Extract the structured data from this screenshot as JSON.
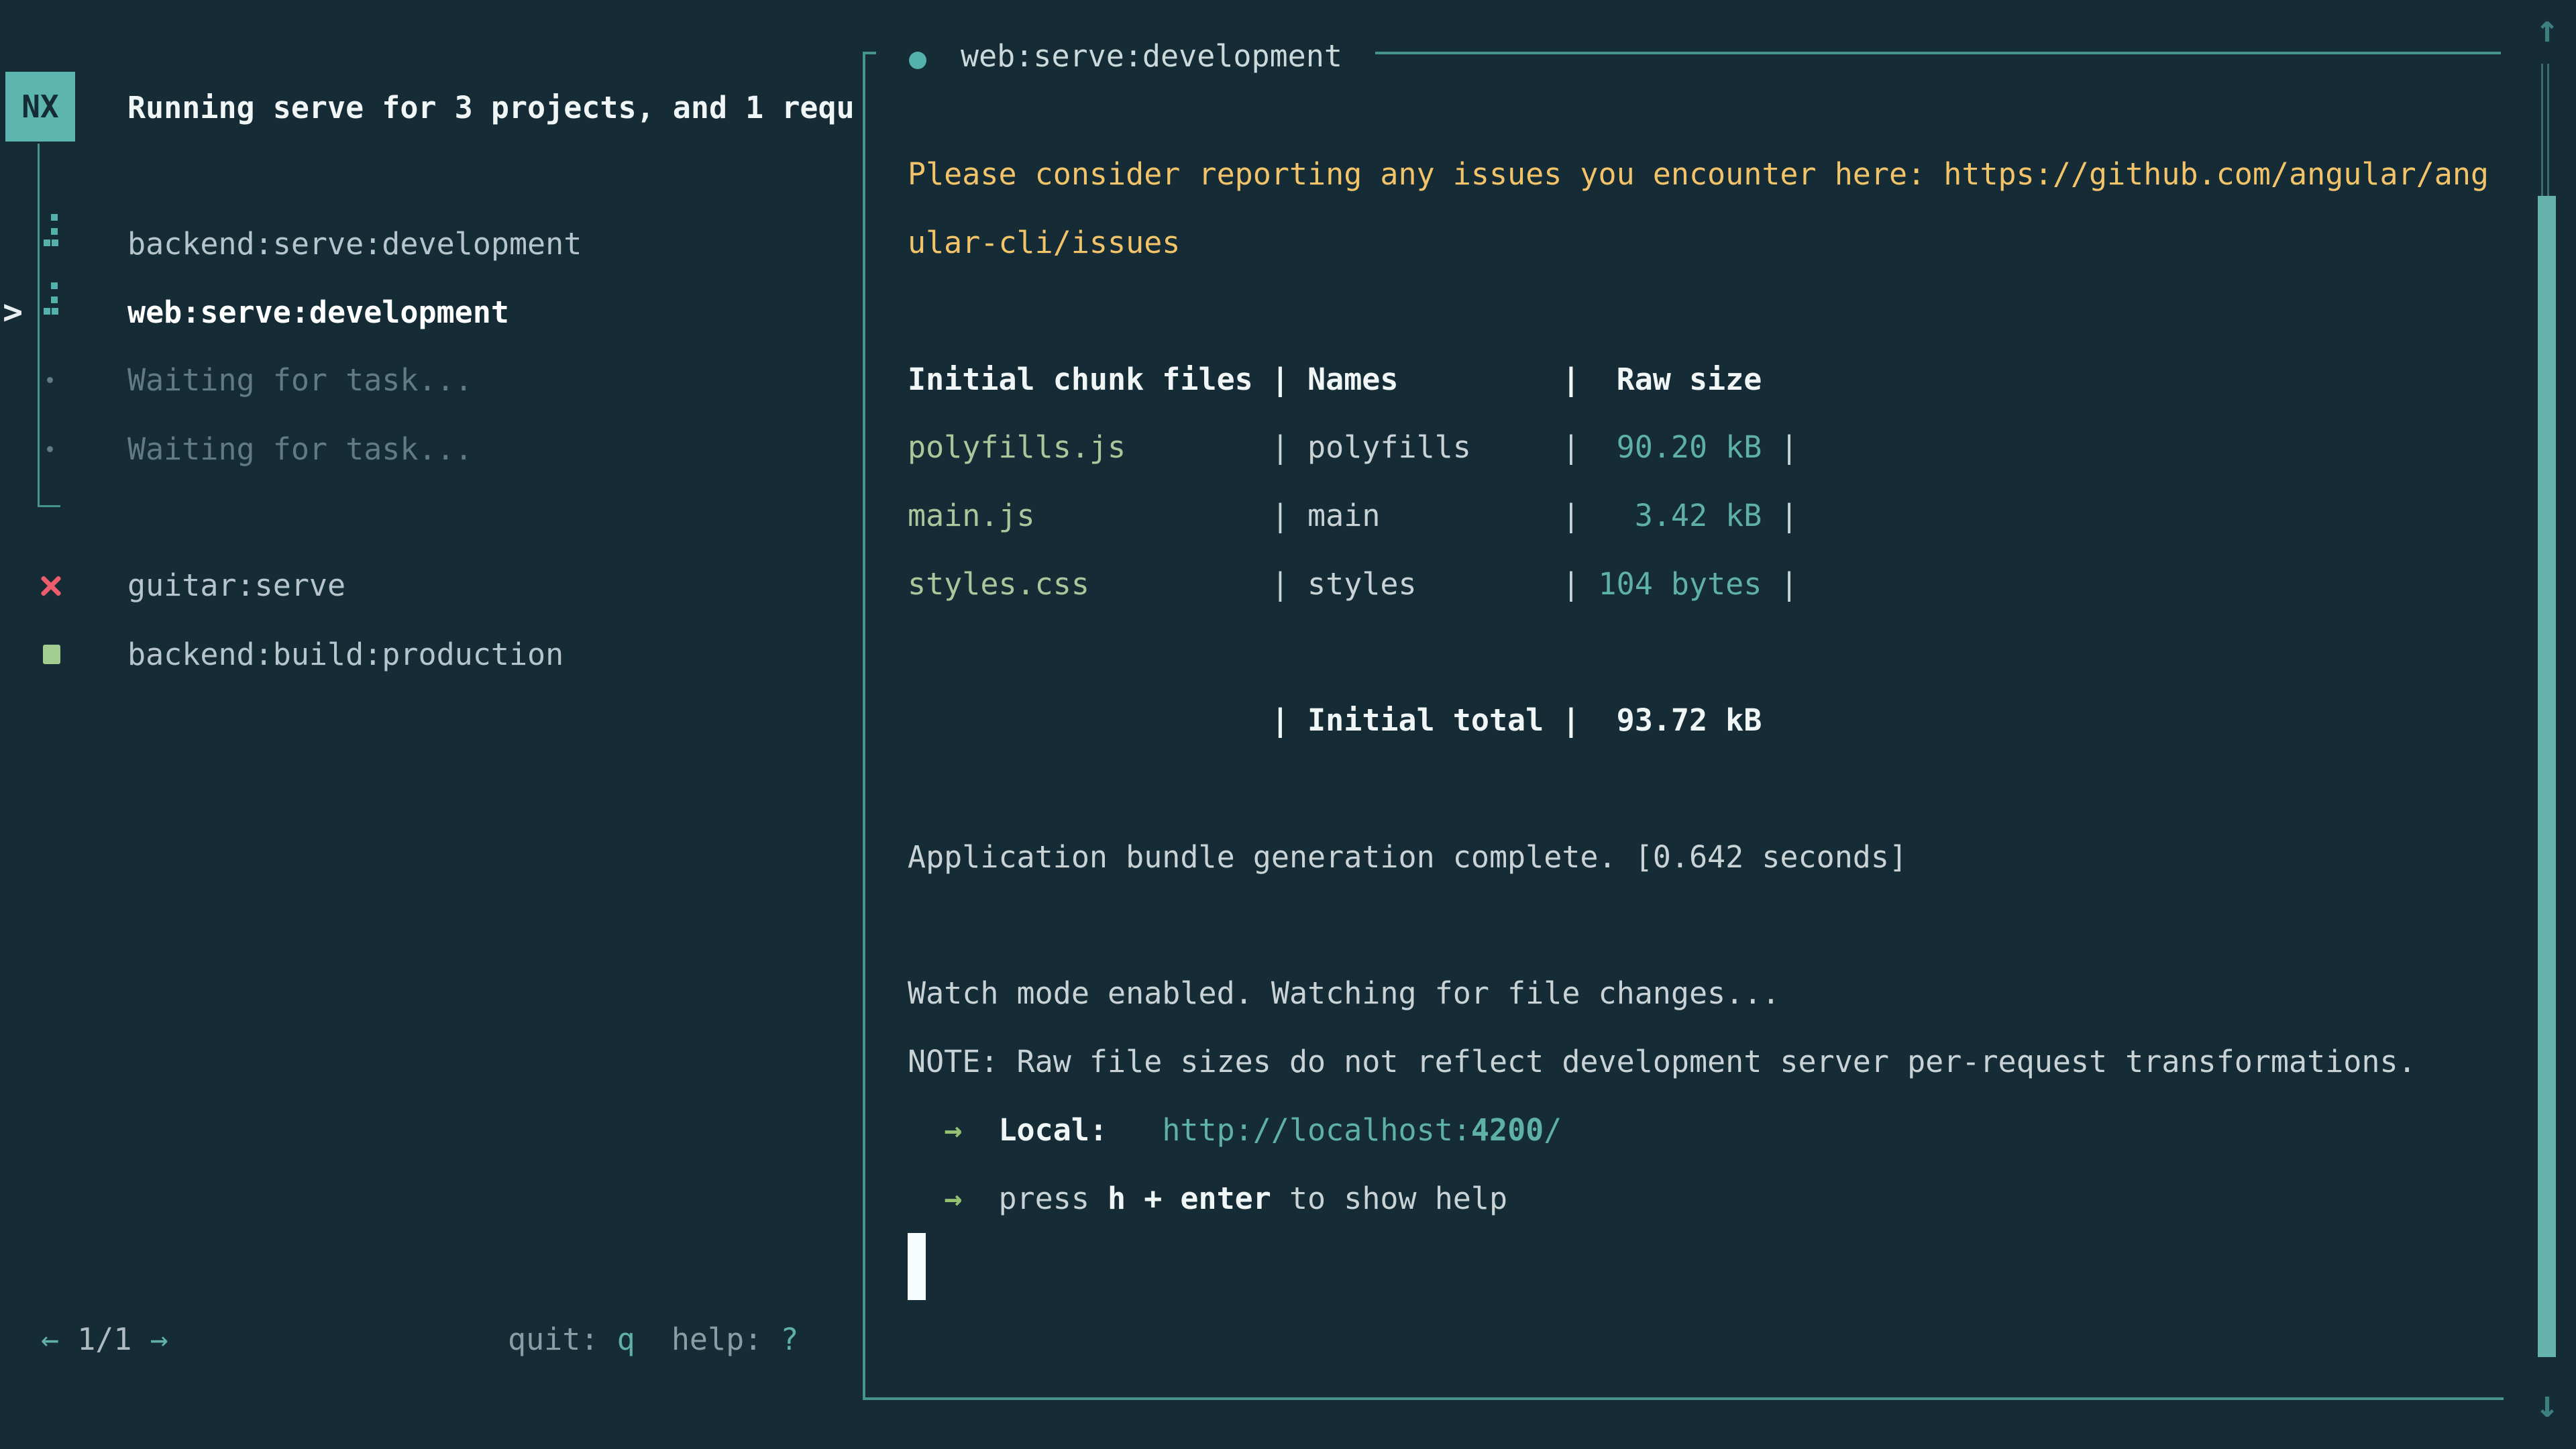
{
  "app": {
    "badge": "NX",
    "title": "Running serve for 3 projects, and 1 requ"
  },
  "sidebar": {
    "tasks": [
      {
        "label": "backend:serve:development",
        "status": "running"
      },
      {
        "label": "web:serve:development",
        "status": "running",
        "selected": true
      },
      {
        "label": "Waiting for task...",
        "status": "waiting"
      },
      {
        "label": "Waiting for task...",
        "status": "waiting"
      },
      {
        "label": "guitar:serve",
        "status": "failed"
      },
      {
        "label": "backend:build:production",
        "status": "success"
      }
    ],
    "selection_marker": ">",
    "pager": {
      "prev": "←",
      "label": "1/1",
      "next": "→"
    },
    "shortcuts": {
      "quit_label": "quit: ",
      "quit_key": "q",
      "help_label": "  help: ",
      "help_key": "?"
    }
  },
  "panel": {
    "title": "web:serve:development"
  },
  "terminal": {
    "lines": [
      [
        {
          "t": "Please consider reporting any issues you encounter here: https://github.com/angular/ang",
          "c": "y"
        }
      ],
      [
        {
          "t": "ular-cli/issues",
          "c": "y"
        }
      ],
      [],
      [
        {
          "t": "Initial chunk files | Names         |  Raw size",
          "c": "b"
        }
      ],
      [
        {
          "t": "polyfills.js",
          "c": "g"
        },
        {
          "t": "        | polyfills     |  ",
          "c": "d"
        },
        {
          "t": "90.20 kB",
          "c": "t"
        },
        {
          "t": " |",
          "c": "d"
        }
      ],
      [
        {
          "t": "main.js",
          "c": "g"
        },
        {
          "t": "             | main          |   ",
          "c": "d"
        },
        {
          "t": "3.42 kB",
          "c": "t"
        },
        {
          "t": " |",
          "c": "d"
        }
      ],
      [
        {
          "t": "styles.css",
          "c": "g"
        },
        {
          "t": "          | styles        | ",
          "c": "d"
        },
        {
          "t": "104 bytes",
          "c": "t"
        },
        {
          "t": " |",
          "c": "d"
        }
      ],
      [],
      [
        {
          "t": "                    ",
          "c": "d"
        },
        {
          "t": "| Initial total |  93.72 kB",
          "c": "b"
        }
      ],
      [],
      [
        {
          "t": "Application bundle generation complete. [0.642 seconds]",
          "c": "d"
        }
      ],
      [],
      [
        {
          "t": "Watch mode enabled. Watching for file changes...",
          "c": "d"
        }
      ],
      [
        {
          "t": "NOTE: Raw file sizes do not reflect development server per-request transformations.",
          "c": "d"
        }
      ],
      [
        {
          "t": "  ",
          "c": "d"
        },
        {
          "t": "→",
          "c": "ga"
        },
        {
          "t": "  ",
          "c": "d"
        },
        {
          "t": "Local:",
          "c": "b"
        },
        {
          "t": "   ",
          "c": "d"
        },
        {
          "t": "http://localhost:",
          "c": "t"
        },
        {
          "t": "4200",
          "c": "tb"
        },
        {
          "t": "/",
          "c": "t"
        }
      ],
      [
        {
          "t": "  ",
          "c": "d"
        },
        {
          "t": "→",
          "c": "ga"
        },
        {
          "t": "  ",
          "c": "d"
        },
        {
          "t": "press ",
          "c": "d"
        },
        {
          "t": "h + enter",
          "c": "b"
        },
        {
          "t": " to show help",
          "c": "d"
        }
      ],
      [
        {
          "t": " ",
          "c": "cur"
        }
      ]
    ]
  },
  "scrollbar": {
    "up": "↑",
    "down": "↓"
  },
  "colors": {
    "--bg": "#152b36",
    "--border": "#47948c",
    "--teal": "#5fb0a8",
    "--thumb": "#64b1ae",
    "--badge": "#5cb5af",
    "--text": "#c9d3d6",
    "--bright": "#f0f5f5",
    "--dim": "#627a84",
    "--muted": "#8b9da4",
    "--yellow": "#f2c368",
    "--green": "#a8c79b",
    "--garrow": "#95c171",
    "--red": "#ec5c6c",
    "--gsquare": "#a3cd90",
    "--task": "#b6c5cb",
    "--spinner": "#55b1ac",
    "--cursor": "#f7fdff"
  }
}
